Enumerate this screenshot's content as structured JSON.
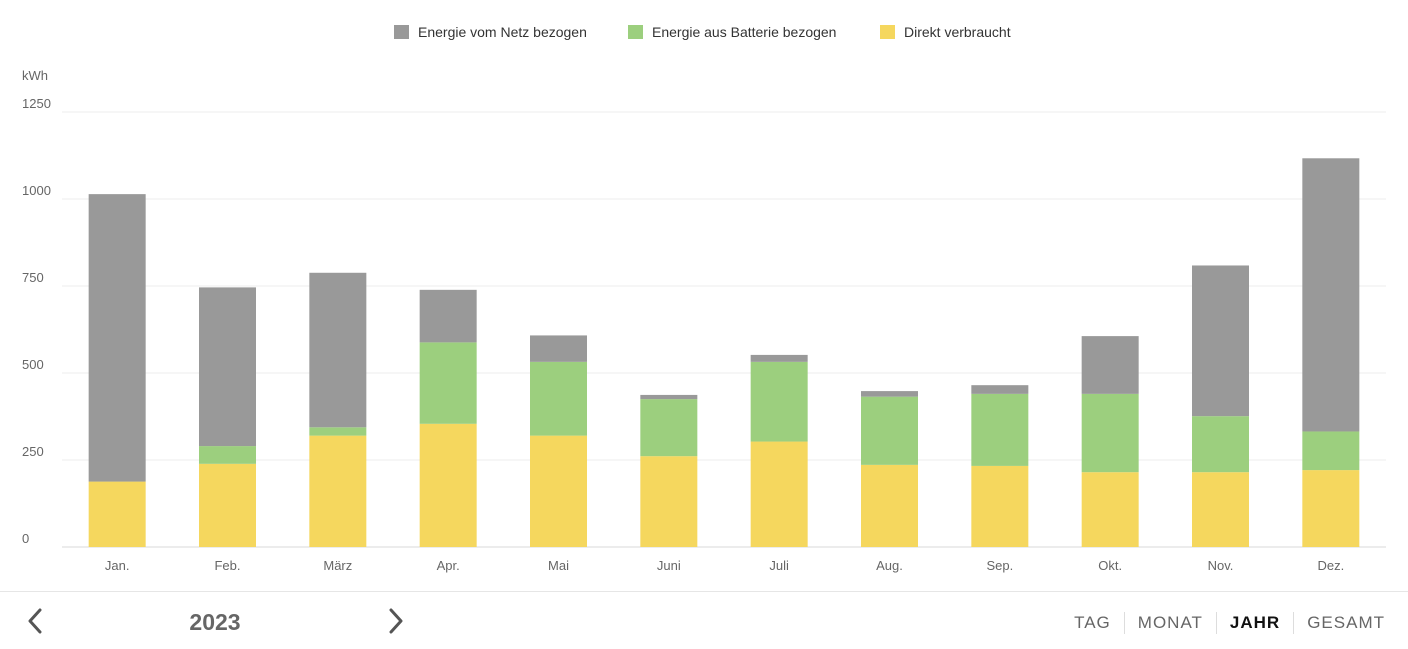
{
  "chart_data": {
    "type": "bar",
    "stacked": true,
    "ylabel": "kWh",
    "ylim": [
      0,
      1250
    ],
    "yticks": [
      0,
      250,
      500,
      750,
      1000,
      1250
    ],
    "categories": [
      "Jan.",
      "Feb.",
      "März",
      "Apr.",
      "Mai",
      "Juni",
      "Juli",
      "Aug.",
      "Sep.",
      "Okt.",
      "Nov.",
      "Dez."
    ],
    "legend_position": "top",
    "grid": true,
    "series": [
      {
        "name": "Direkt verbraucht",
        "color": "#f5d75e",
        "values": [
          188,
          239,
          320,
          354,
          320,
          261,
          303,
          236,
          233,
          215,
          215,
          221
        ]
      },
      {
        "name": "Energie aus Batterie bezogen",
        "color": "#9ccf7e",
        "values": [
          0,
          51,
          24,
          234,
          212,
          164,
          229,
          196,
          207,
          225,
          161,
          111
        ]
      },
      {
        "name": "Energie vom Netz bezogen",
        "color": "#999999",
        "values": [
          826,
          456,
          444,
          151,
          76,
          12,
          20,
          16,
          25,
          166,
          433,
          785
        ]
      }
    ],
    "legend_order": [
      2,
      1,
      0
    ]
  },
  "footer": {
    "year": "2023",
    "prev_icon": "chevron-left-icon",
    "next_icon": "chevron-right-icon",
    "ranges": [
      {
        "label": "TAG",
        "active": false
      },
      {
        "label": "MONAT",
        "active": false
      },
      {
        "label": "JAHR",
        "active": true
      },
      {
        "label": "GESAMT",
        "active": false
      }
    ]
  }
}
